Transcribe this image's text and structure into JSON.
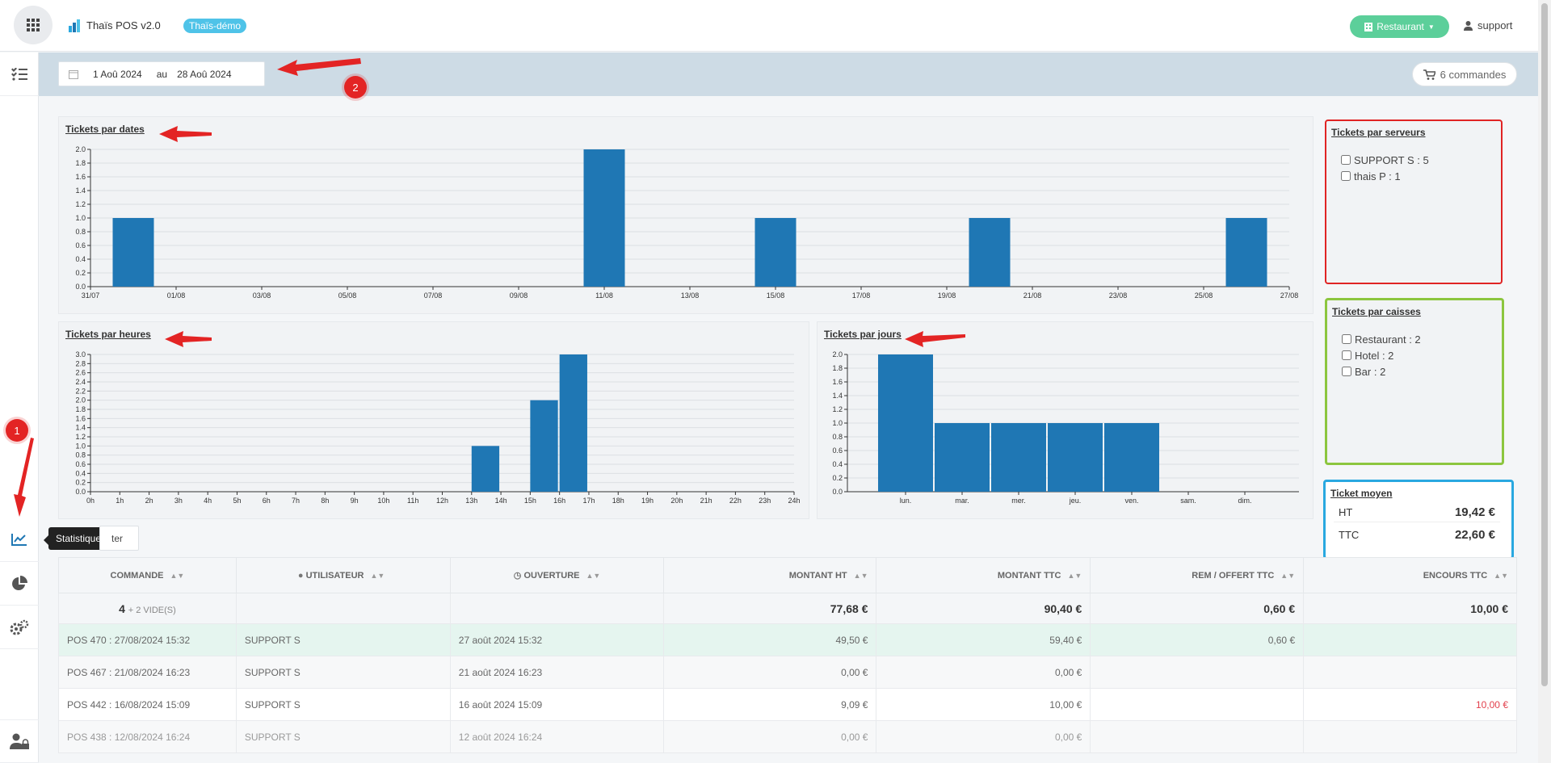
{
  "header": {
    "app_title": "Thaïs POS v2.0",
    "demo_badge": "Thaïs-démo",
    "restaurant_button": "Restaurant",
    "user": "support"
  },
  "sidebar": {
    "tooltip": "Statistiques",
    "items": [
      "checklist-icon",
      "chart-line-icon",
      "pie-chart-icon",
      "gears-icon",
      "user-lock-icon"
    ]
  },
  "filter": {
    "date_from": "1 Aoû 2024",
    "separator": "au",
    "date_to": "28 Aoû 2024",
    "orders_button": "6 commandes"
  },
  "charts": {
    "dates": {
      "title": "Tickets par dates"
    },
    "hours": {
      "title": "Tickets par heures"
    },
    "days": {
      "title": "Tickets par jours"
    }
  },
  "chart_data": [
    {
      "type": "bar",
      "title": "Tickets par dates",
      "x_ticks": [
        "31/07",
        "01/08",
        "03/08",
        "05/08",
        "07/08",
        "09/08",
        "11/08",
        "13/08",
        "15/08",
        "17/08",
        "19/08",
        "21/08",
        "23/08",
        "25/08",
        "27/08"
      ],
      "categories": [
        "01/08",
        "12/08",
        "16/08",
        "21/08",
        "27/08"
      ],
      "values": [
        1,
        2,
        1,
        1,
        1
      ],
      "ylim": [
        0,
        2
      ],
      "y_ticks": [
        "0.0",
        "0.2",
        "0.4",
        "0.6",
        "0.8",
        "1.0",
        "1.2",
        "1.4",
        "1.6",
        "1.8",
        "2.0"
      ],
      "grid": true
    },
    {
      "type": "bar",
      "title": "Tickets par heures",
      "categories": [
        "0h",
        "1h",
        "2h",
        "3h",
        "4h",
        "5h",
        "6h",
        "7h",
        "8h",
        "9h",
        "10h",
        "11h",
        "12h",
        "13h",
        "14h",
        "15h",
        "16h",
        "17h",
        "18h",
        "19h",
        "20h",
        "21h",
        "22h",
        "23h",
        "24h"
      ],
      "bars": [
        {
          "x": "13h",
          "value": 1
        },
        {
          "x": "15h",
          "value": 2
        },
        {
          "x": "16h",
          "value": 3
        }
      ],
      "ylim": [
        0,
        3
      ],
      "y_ticks": [
        "0.0",
        "0.2",
        "0.4",
        "0.6",
        "0.8",
        "1.0",
        "1.2",
        "1.4",
        "1.6",
        "1.8",
        "2.0",
        "2.2",
        "2.4",
        "2.6",
        "2.8",
        "3.0"
      ],
      "grid": true
    },
    {
      "type": "bar",
      "title": "Tickets par jours",
      "categories": [
        "lun.",
        "mar.",
        "mer.",
        "jeu.",
        "ven.",
        "sam.",
        "dim."
      ],
      "values": [
        2,
        1,
        1,
        1,
        1,
        0,
        0
      ],
      "ylim": [
        0,
        2
      ],
      "y_ticks": [
        "0.0",
        "0.2",
        "0.4",
        "0.6",
        "0.8",
        "1.0",
        "1.2",
        "1.4",
        "1.6",
        "1.8",
        "2.0"
      ],
      "grid": true
    }
  ],
  "servers": {
    "title": "Tickets par serveurs",
    "items": [
      {
        "label": "SUPPORT S : 5"
      },
      {
        "label": "thais P : 1"
      }
    ]
  },
  "caisses": {
    "title": "Tickets par caisses",
    "items": [
      {
        "label": "Restaurant : 2"
      },
      {
        "label": "Hotel : 2"
      },
      {
        "label": "Bar : 2"
      }
    ]
  },
  "ticket_moyen": {
    "title": "Ticket moyen",
    "ht_label": "HT",
    "ht_value": "19,42 €",
    "ttc_label": "TTC",
    "ttc_value": "22,60 €"
  },
  "export_button": "ter",
  "table": {
    "headers": [
      "COMMANDE",
      "UTILISATEUR",
      "OUVERTURE",
      "MONTANT HT",
      "MONTANT TTC",
      "REM / OFFERT TTC",
      "ENCOURS TTC"
    ],
    "totals": {
      "count": "4",
      "empty": "+ 2 VIDE(S)",
      "ht": "77,68 €",
      "ttc": "90,40 €",
      "rem": "0,60 €",
      "encours": "10,00 €"
    },
    "rows": [
      {
        "cmd": "POS 470 : 27/08/2024 15:32",
        "user": "SUPPORT S",
        "open": "27 août 2024 15:32",
        "ht": "49,50 €",
        "ttc": "59,40 €",
        "rem": "0,60 €",
        "encours": ""
      },
      {
        "cmd": "POS 467 : 21/08/2024 16:23",
        "user": "SUPPORT S",
        "open": "21 août 2024 16:23",
        "ht": "0,00 €",
        "ttc": "0,00 €",
        "rem": "",
        "encours": ""
      },
      {
        "cmd": "POS 442 : 16/08/2024 15:09",
        "user": "SUPPORT S",
        "open": "16 août 2024 15:09",
        "ht": "9,09 €",
        "ttc": "10,00 €",
        "rem": "",
        "encours": "10,00 €"
      },
      {
        "cmd": "POS 438 : 12/08/2024 16:24",
        "user": "SUPPORT S",
        "open": "12 août 2024 16:24",
        "ht": "0,00 €",
        "ttc": "0,00 €",
        "rem": "",
        "encours": ""
      }
    ]
  },
  "annotations": {
    "marker1": "1",
    "marker2": "2"
  },
  "colors": {
    "bar": "#1f77b4",
    "accent_green": "#5ccf9a",
    "badge": "#4fc3e8",
    "annot_red": "#e32424",
    "box_red": "#e02424",
    "box_green": "#8cc63f",
    "box_blue": "#29a8e0"
  }
}
